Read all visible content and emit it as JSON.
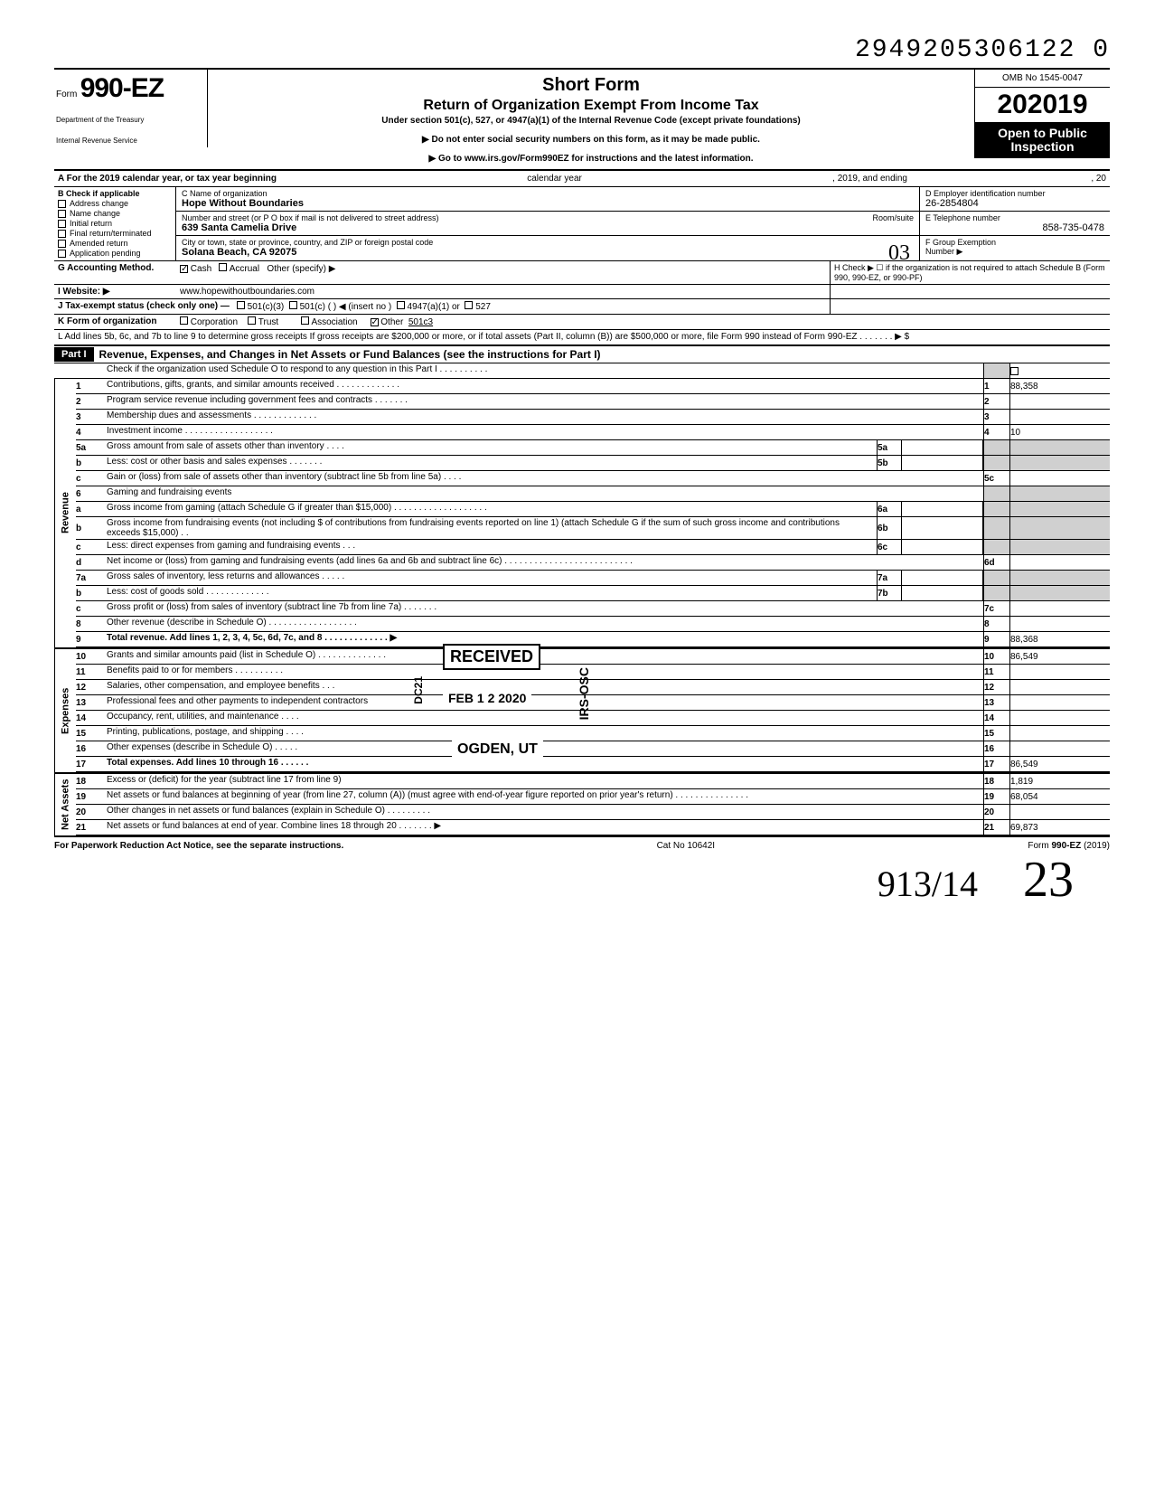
{
  "top_number": "2949205306122  0",
  "omb": "OMB No 1545-0047",
  "form_prefix": "Form",
  "form_number": "990-EZ",
  "year": "2019",
  "dept1": "Department of the Treasury",
  "dept2": "Internal Revenue Service",
  "title_main": "Short Form",
  "title_sub": "Return of Organization Exempt From Income Tax",
  "title_under": "Under section 501(c), 527, or 4947(a)(1) of the Internal Revenue Code (except private foundations)",
  "title_note1": "▶ Do not enter social security numbers on this form, as it may be made public.",
  "title_note2": "▶ Go to www.irs.gov/Form990EZ for instructions and the latest information.",
  "open_public": "Open to Public Inspection",
  "row_a_left": "A For the 2019 calendar year, or tax year beginning",
  "row_a_mid": "calendar year",
  "row_a_mid2": ", 2019, and ending",
  "row_a_right": ", 20",
  "b_label": "B Check if applicable",
  "b_items": [
    "Address change",
    "Name change",
    "Initial return",
    "Final return/terminated",
    "Amended return",
    "Application pending"
  ],
  "c_label": "C Name of organization",
  "org_name": "Hope Without Boundaries",
  "addr_label": "Number and street (or P O  box if mail is not delivered to street address)",
  "room_label": "Room/suite",
  "addr": "639 Santa Camelia Drive",
  "city_label": "City or town, state or province, country, and ZIP or foreign postal code",
  "city": "Solana Beach, CA 92075",
  "handwrite_o3": "03",
  "d_label": "D Employer identification number",
  "ein": "26-2854804",
  "e_label": "E Telephone number",
  "phone": "858-735-0478",
  "f_label": "F Group Exemption",
  "f_label2": "Number ▶",
  "g_label": "G Accounting Method.",
  "g_cash": "Cash",
  "g_accrual": "Accrual",
  "g_other": "Other (specify) ▶",
  "h_label": "H Check ▶ ☐ if the organization is not required to attach Schedule B (Form 990, 990-EZ, or 990-PF)",
  "i_label": "I  Website: ▶",
  "website": "www.hopewithoutboundaries.com",
  "j_label": "J Tax-exempt status (check only one) —",
  "j_501c3": "501(c)(3)",
  "j_501c": "501(c) (",
  "j_insert": ") ◀ (insert no )",
  "j_4947": "4947(a)(1) or",
  "j_527": "527",
  "k_label": "K Form of organization",
  "k_corp": "Corporation",
  "k_trust": "Trust",
  "k_assoc": "Association",
  "k_other": "Other",
  "k_other_val": "501c3",
  "l_text": "L Add lines 5b, 6c, and 7b to line 9 to determine gross receipts  If gross receipts are $200,000 or more, or if total assets (Part II, column (B)) are $500,000 or more, file Form 990 instead of Form 990-EZ    .    .    .    .    .    .    .    ▶   $",
  "part1_label": "Part I",
  "part1_title": "Revenue, Expenses, and Changes in Net Assets or Fund Balances (see the instructions for Part I)",
  "part1_check": "Check if the organization used Schedule O to respond to any question in this Part I .  .  .  .  .  .  .  .  .  .",
  "vtab_rev": "Revenue",
  "vtab_exp": "Expenses",
  "vtab_net": "Net Assets",
  "lines": {
    "l1": {
      "n": "1",
      "d": "Contributions, gifts, grants, and similar amounts received .  .  .  .  .  .  .  .  .  .  .  .  .",
      "rn": "1",
      "v": "88,358"
    },
    "l2": {
      "n": "2",
      "d": "Program service revenue including government fees and contracts    .   .   .   .   .   .   .",
      "rn": "2",
      "v": ""
    },
    "l3": {
      "n": "3",
      "d": "Membership dues and assessments .   .   .   .   .   .   .                  .   .   .   .   .   .",
      "rn": "3",
      "v": ""
    },
    "l4": {
      "n": "4",
      "d": "Investment income    .   .   .   .   .   .   .   .   .   .   .   .                   .   .   .   .   .   .",
      "rn": "4",
      "v": "10"
    },
    "l5a": {
      "n": "5a",
      "d": "Gross amount from sale of assets other than inventory   .   .   .   .",
      "mb": "5a"
    },
    "l5b": {
      "n": "b",
      "d": "Less: cost or other basis and sales expenses .   .         .   .   .   .   .",
      "mb": "5b"
    },
    "l5c": {
      "n": "c",
      "d": "Gain or (loss) from sale of assets other than inventory (subtract line 5b from line 5a)  .   .   .   .",
      "rn": "5c",
      "v": ""
    },
    "l6": {
      "n": "6",
      "d": "Gaming and fundraising events"
    },
    "l6a": {
      "n": "a",
      "d": "Gross income from gaming (attach Schedule G if greater than $15,000) .  .  .  .  .  .  .  .  .  .  .  .  .  .  .  .  .  .  .",
      "mb": "6a"
    },
    "l6b": {
      "n": "b",
      "d": "Gross income from fundraising events (not including  $                       of contributions from fundraising events reported on line 1) (attach Schedule G if the sum of such gross income and contributions exceeds $15,000) .  .",
      "mb": "6b"
    },
    "l6c": {
      "n": "c",
      "d": "Less: direct expenses from gaming and fundraising events   .   .   .",
      "mb": "6c"
    },
    "l6d": {
      "n": "d",
      "d": "Net income or (loss) from gaming and fundraising events (add lines 6a and 6b and subtract line 6c)    .   .   .   .   .   .   .   .   .   .   .   .   .   .   .   .   .   .   .   .   .   .   .   .   .   .",
      "rn": "6d",
      "v": ""
    },
    "l7a": {
      "n": "7a",
      "d": "Gross sales of inventory, less returns and allowances  .   .   .   .   .",
      "mb": "7a"
    },
    "l7b": {
      "n": "b",
      "d": "Less: cost of goods sold      .   .   .   .   .   .   .   .   .   .   .   .   .",
      "mb": "7b"
    },
    "l7c": {
      "n": "c",
      "d": "Gross profit or (loss) from sales of inventory (subtract line 7b from line 7a)  .   .   .   .   .   .   .",
      "rn": "7c",
      "v": ""
    },
    "l8": {
      "n": "8",
      "d": "Other revenue (describe in Schedule O) .   .   .   .   .   .   .   .   .   .   .   .   .   .   .   .   .   .",
      "rn": "8",
      "v": ""
    },
    "l9": {
      "n": "9",
      "d": "Total revenue. Add lines 1, 2, 3, 4, 5c, 6d, 7c, and 8   .   .   .   .   .   .   .   .   .   .   .   .   .  ▶",
      "rn": "9",
      "v": "88,368",
      "bold": true
    },
    "l10": {
      "n": "10",
      "d": "Grants and similar amounts paid (list in Schedule O)  .   .   .   .   .   .   .   .   .   .   .   .   .   .",
      "rn": "10",
      "v": "86,549"
    },
    "l11": {
      "n": "11",
      "d": "Benefits paid to or for members   .   .   .   .   .   .   .   .   .   .",
      "rn": "11",
      "v": ""
    },
    "l12": {
      "n": "12",
      "d": "Salaries, other compensation, and employee benefits .   .   .",
      "rn": "12",
      "v": ""
    },
    "l13": {
      "n": "13",
      "d": "Professional fees and other payments to independent contractors",
      "rn": "13",
      "v": ""
    },
    "l14": {
      "n": "14",
      "d": "Occupancy, rent, utilities, and maintenance   .   .   .   .",
      "rn": "14",
      "v": ""
    },
    "l15": {
      "n": "15",
      "d": "Printing, publications, postage, and shipping .   .   .   .",
      "rn": "15",
      "v": ""
    },
    "l16": {
      "n": "16",
      "d": "Other expenses (describe in Schedule O)  .   .   .   .   .",
      "rn": "16",
      "v": ""
    },
    "l17": {
      "n": "17",
      "d": "Total expenses. Add lines 10 through 16 .   .   .   .   .   .",
      "rn": "17",
      "v": "86,549",
      "bold": true
    },
    "l18": {
      "n": "18",
      "d": "Excess or (deficit) for the year (subtract line 17 from line 9)",
      "rn": "18",
      "v": "1,819"
    },
    "l19": {
      "n": "19",
      "d": "Net assets or fund balances at beginning of year (from line 27, column (A)) (must agree with end-of-year figure reported on prior year's return)    .   .   .   .   .   .   .   .   .   .   .   .   .   .   .",
      "rn": "19",
      "v": "68,054"
    },
    "l20": {
      "n": "20",
      "d": "Other changes in net assets or fund balances (explain in Schedule O) .   .   .   .   .   .   .   .   .",
      "rn": "20",
      "v": ""
    },
    "l21": {
      "n": "21",
      "d": "Net assets or fund balances at end of year. Combine lines 18 through 20   .   .   .   .   .   .   .  ▶",
      "rn": "21",
      "v": "69,873"
    }
  },
  "stamp_received": "RECEIVED",
  "stamp_date": "FEB 1 2 2020",
  "stamp_ogden": "OGDEN, UT",
  "stamp_irs": "IRS-OSC",
  "stamp_dc": "DC21",
  "footer_left": "For Paperwork Reduction Act Notice, see the separate instructions.",
  "footer_mid": "Cat No 10642I",
  "footer_right": "Form 990-EZ (2019)",
  "sig1": "913/14",
  "sig2": "23"
}
